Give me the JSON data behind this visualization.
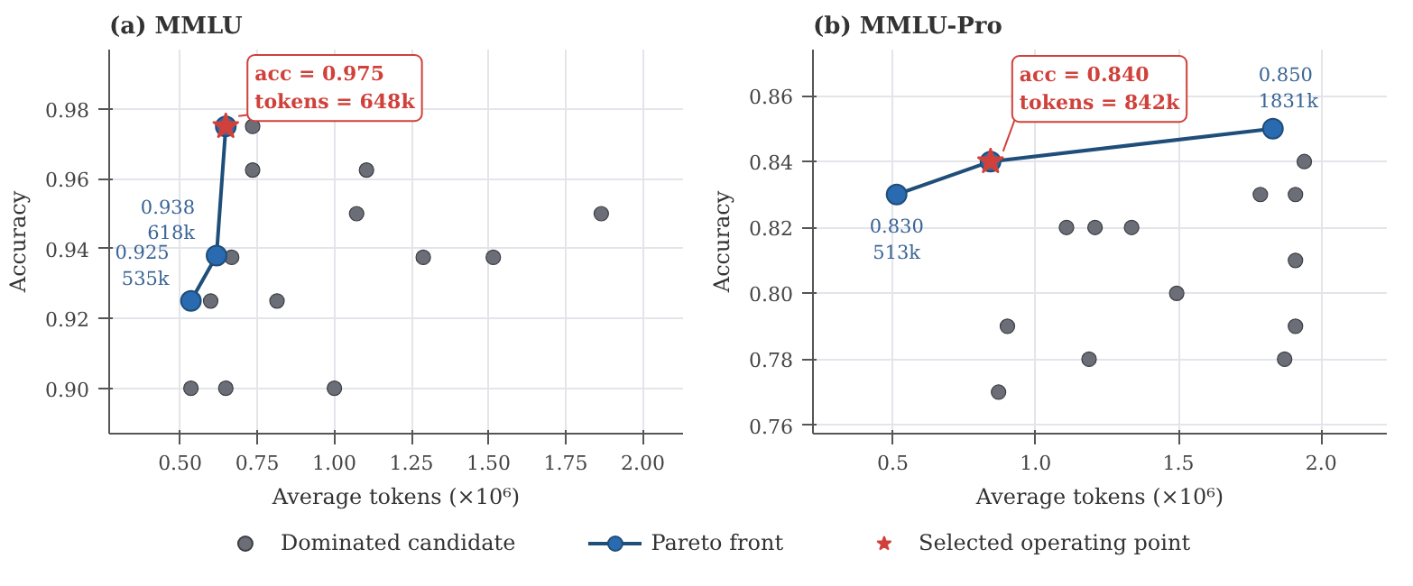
{
  "chart_data": [
    {
      "type": "scatter",
      "title": "(a) MMLU",
      "xlabel": "Average tokens (×10⁶)",
      "ylabel": "Accuracy",
      "xlim": [
        0.27,
        2.13
      ],
      "ylim": [
        0.887,
        0.997
      ],
      "xticks": [
        {
          "value": 0.5,
          "label": "0.50"
        },
        0.75,
        {
          "value": 1.0,
          "label": "1.00"
        },
        1.25,
        {
          "value": 1.5,
          "label": "1.50"
        },
        1.75,
        {
          "value": 2.0,
          "label": "2.00"
        }
      ],
      "yticks": [
        {
          "value": 0.9,
          "label": "0.90"
        },
        0.92,
        0.94,
        0.96,
        0.98
      ],
      "grid": true,
      "legend": "bottom",
      "series": [
        {
          "name": "Dominated candidate",
          "marker": "circle",
          "color": "#6b6e76",
          "x": [
            0.735,
            0.735,
            1.104,
            1.072,
            1.865,
            0.667,
            1.288,
            1.515,
            0.599,
            0.814,
            0.535,
            0.648,
            1.0
          ],
          "values": [
            0.975,
            0.9625,
            0.9625,
            0.95,
            0.95,
            0.9375,
            0.9375,
            0.9375,
            0.925,
            0.925,
            0.9,
            0.9,
            0.9
          ]
        },
        {
          "name": "Pareto front",
          "type": "line",
          "marker": "circle",
          "color": "#2a6ab0",
          "x": [
            0.535,
            0.618,
            0.648
          ],
          "values": [
            0.925,
            0.938,
            0.975
          ]
        },
        {
          "name": "Selected operating point",
          "marker": "star",
          "color": "#d0413b",
          "x": [
            0.648
          ],
          "values": [
            0.975
          ]
        }
      ],
      "annotations": [
        {
          "text": "acc = 0.975\ntokens = 648k",
          "x": 0.648,
          "y": 0.975
        },
        {
          "text": "0.925\n535k",
          "x": 0.535,
          "y": 0.925
        },
        {
          "text": "0.938\n618k",
          "x": 0.618,
          "y": 0.938
        }
      ]
    },
    {
      "type": "scatter",
      "title": "(b) MMLU-Pro",
      "xlabel": "Average tokens (×10⁶)",
      "ylabel": "Accuracy",
      "xlim": [
        0.22,
        2.23
      ],
      "ylim": [
        0.7574,
        0.874
      ],
      "xticks": [
        0.5,
        {
          "value": 1.0,
          "label": "1.0"
        },
        1.5,
        {
          "value": 2.0,
          "label": "2.0"
        }
      ],
      "yticks": [
        0.76,
        0.78,
        {
          "value": 0.8,
          "label": "0.80"
        },
        0.82,
        0.84,
        0.86
      ],
      "grid": true,
      "series": [
        {
          "marker": "circle",
          "color": "#6b6e76",
          "x": [
            1.941,
            1.787,
            1.91,
            1.108,
            1.208,
            1.336,
            1.91,
            1.494,
            0.901,
            1.91,
            1.187,
            1.872,
            0.87
          ],
          "values": [
            0.84,
            0.83,
            0.83,
            0.82,
            0.82,
            0.82,
            0.81,
            0.8,
            0.79,
            0.79,
            0.78,
            0.78,
            0.77
          ]
        },
        {
          "type": "line",
          "marker": "circle",
          "color": "#2a6ab0",
          "x": [
            0.513,
            0.842,
            1.831
          ],
          "values": [
            0.83,
            0.84,
            0.85
          ]
        },
        {
          "marker": "star",
          "color": "#d0413b",
          "x": [
            0.842
          ],
          "values": [
            0.84
          ]
        }
      ],
      "annotations": [
        {
          "text": "acc = 0.840\ntokens = 842k",
          "x": 0.842,
          "y": 0.84
        },
        {
          "text": "0.830\n513k",
          "x": 0.513,
          "y": 0.83
        },
        {
          "text": "0.850\n1831k",
          "x": 1.831,
          "y": 0.85
        }
      ]
    }
  ]
}
